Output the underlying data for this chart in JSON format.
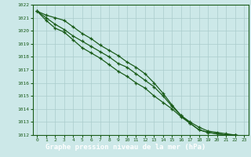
{
  "title": "Graphe pression niveau de la mer (hPa)",
  "x_hours": [
    0,
    1,
    2,
    3,
    4,
    5,
    6,
    7,
    8,
    9,
    10,
    11,
    12,
    13,
    14,
    15,
    16,
    17,
    18,
    19,
    20,
    21,
    22,
    23
  ],
  "line1": [
    1021.5,
    1021.2,
    1021.0,
    1020.8,
    1020.3,
    1019.8,
    1019.4,
    1018.9,
    1018.5,
    1018.1,
    1017.6,
    1017.2,
    1016.7,
    1016.0,
    1015.2,
    1014.3,
    1013.5,
    1013.0,
    1012.6,
    1012.3,
    1012.2,
    1012.1,
    1012.0,
    1011.9
  ],
  "line2": [
    1021.5,
    1021.0,
    1020.5,
    1020.1,
    1019.6,
    1019.2,
    1018.8,
    1018.4,
    1018.0,
    1017.5,
    1017.2,
    1016.7,
    1016.2,
    1015.7,
    1015.0,
    1014.2,
    1013.5,
    1012.9,
    1012.4,
    1012.2,
    1012.1,
    1012.0,
    1012.0,
    1011.9
  ],
  "line3": [
    1021.5,
    1020.8,
    1020.2,
    1019.9,
    1019.3,
    1018.7,
    1018.3,
    1017.9,
    1017.4,
    1016.9,
    1016.5,
    1016.0,
    1015.6,
    1015.0,
    1014.5,
    1014.0,
    1013.4,
    1012.9,
    1012.4,
    1012.2,
    1012.1,
    1012.0,
    1012.0,
    1011.7
  ],
  "ylim_min": 1012,
  "ylim_max": 1022,
  "bg_color": "#cce8e8",
  "grid_color": "#aacccc",
  "line_color": "#1a5c1a",
  "marker_color": "#1a5c1a",
  "label_color": "#1a5c1a",
  "title_bg": "#2d7a2d",
  "title_text_color": "#ffffff",
  "yticks": [
    1012,
    1013,
    1014,
    1015,
    1016,
    1017,
    1018,
    1019,
    1020,
    1021,
    1022
  ]
}
